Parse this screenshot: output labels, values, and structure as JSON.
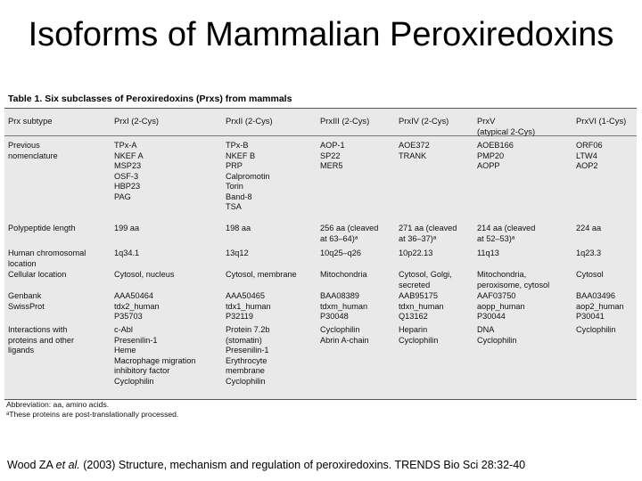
{
  "slide": {
    "title": "Isoforms of Mammalian Peroxiredoxins",
    "citation_pre": "Wood ZA ",
    "citation_etal": "et al.",
    "citation_post": " (2003) Structure, mechanism and regulation of peroxiredoxins. TRENDS Bio Sci 28:32-40"
  },
  "table": {
    "caption": "Table 1. Six subclasses of Peroxiredoxins (Prxs) from mammals",
    "headers": [
      "Prx subtype",
      "PrxI (2-Cys)",
      "PrxII (2-Cys)",
      "PrxIII (2-Cys)",
      "PrxIV (2-Cys)",
      "PrxV\n(atypical 2-Cys)",
      "PrxVI (1-Cys)"
    ],
    "rows": [
      {
        "label": "Previous\nnomenclature",
        "values": [
          "TPx-A\nNKEF A\nMSP23\nOSF-3\nHBP23\nPAG",
          "TPx-B\nNKEF B\nPRP\nCalpromotin\nTorin\nBand-8\nTSA",
          "AOP-1\nSP22\nMER5",
          "AOE372\nTRANK",
          "AOEB166\nPMP20\nAOPP",
          "ORF06\nLTW4\nAOP2"
        ]
      },
      {
        "label": "Polypeptide length",
        "values": [
          "199 aa",
          "198 aa",
          "256 aa (cleaved\nat 63–64)ᵃ",
          "271 aa (cleaved\nat 36–37)ᵃ",
          "214 aa (cleaved\nat 52–53)ᵃ",
          "224 aa"
        ]
      },
      {
        "label": "Human chromosomal\nlocation",
        "values": [
          "1q34.1",
          "13q12",
          "10q25–q26",
          "10p22.13",
          "11q13",
          "1q23.3"
        ]
      },
      {
        "label": "Cellular location",
        "values": [
          "Cytosol, nucleus",
          "Cytosol, membrane",
          "Mitochondria",
          "Cytosol, Golgi,\nsecreted",
          "Mitochondria,\nperoxisome, cytosol",
          "Cytosol"
        ]
      },
      {
        "label": "Genbank\nSwissProt",
        "values": [
          "AAA50464\ntdx2_human\nP35703",
          "AAA50465\ntdx1_human\nP32119",
          "BAA08389\ntdxm_human\nP30048",
          "AAB95175\ntdxn_human\nQ13162",
          "AAF03750\naopp_human\nP30044",
          "BAA03496\naop2_human\nP30041"
        ]
      },
      {
        "label": "Interactions with\nproteins and other\nligands",
        "values": [
          "c-Abl\nPresenilin-1\nHeme\nMacrophage migration\ninhibitory factor\nCyclophilin",
          "Protein 7.2b\n(stomatin)\nPresenilin-1\nErythrocyte\nmembrane\nCyclophilin",
          "Cyclophilin\nAbrin A-chain",
          "Heparin\nCyclophilin",
          "DNA\nCyclophilin",
          "Cyclophilin"
        ]
      }
    ],
    "footnote_abbrev": "Abbreviation: aa, amino acids.",
    "footnote_a": "ᵃThese proteins are post-translationally processed."
  }
}
